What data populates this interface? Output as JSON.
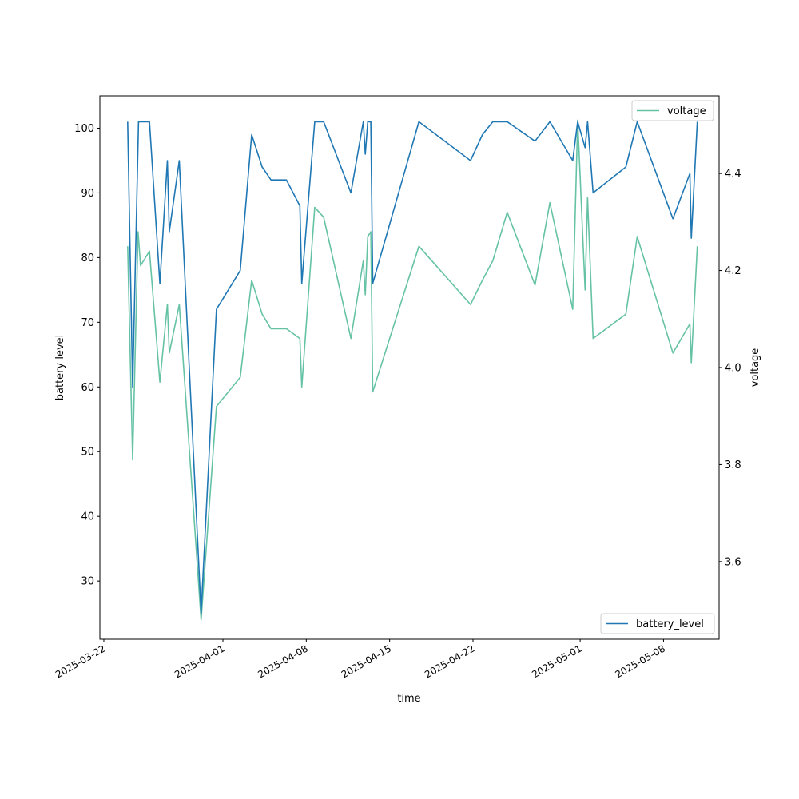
{
  "chart_data": {
    "type": "line",
    "xlabel": "time",
    "ylabel_left": "battery level",
    "ylabel_right": "voltage",
    "x_ticks": [
      "2025-03-22",
      "2025-04-01",
      "2025-04-08",
      "2025-04-15",
      "2025-04-22",
      "2025-05-01",
      "2025-05-08"
    ],
    "y_left_ticks": [
      30,
      40,
      50,
      60,
      70,
      80,
      90,
      100
    ],
    "y_right_ticks": [
      "3.6",
      "3.8",
      "4.0",
      "4.2",
      "4.4"
    ],
    "xlim": [
      "2025-03-21T16:00",
      "2025-05-12T16:00"
    ],
    "ylim_left": [
      21,
      105
    ],
    "ylim_right": [
      3.44,
      4.56
    ],
    "grid": false,
    "series": [
      {
        "name": "battery_level",
        "axis": "left",
        "color": "#1f77b4",
        "legend_position": "lower-right",
        "points": [
          [
            "2025-03-24T00:00",
            101
          ],
          [
            "2025-03-24T10:00",
            60
          ],
          [
            "2025-03-24T22:00",
            101
          ],
          [
            "2025-03-25T20:00",
            101
          ],
          [
            "2025-03-26T17:00",
            76
          ],
          [
            "2025-03-27T08:00",
            95
          ],
          [
            "2025-03-27T12:00",
            84
          ],
          [
            "2025-03-28T08:00",
            95
          ],
          [
            "2025-03-30T04:00",
            25
          ],
          [
            "2025-03-31T11:00",
            72
          ],
          [
            "2025-04-02T11:00",
            78
          ],
          [
            "2025-04-03T10:00",
            99
          ],
          [
            "2025-04-04T07:00",
            94
          ],
          [
            "2025-04-05T01:00",
            92
          ],
          [
            "2025-04-06T08:00",
            92
          ],
          [
            "2025-04-07T11:00",
            88
          ],
          [
            "2025-04-07T15:00",
            76
          ],
          [
            "2025-04-08T17:00",
            101
          ],
          [
            "2025-04-09T11:00",
            101
          ],
          [
            "2025-04-11T18:00",
            90
          ],
          [
            "2025-04-12T19:00",
            101
          ],
          [
            "2025-04-12T23:00",
            96
          ],
          [
            "2025-04-13T04:00",
            101
          ],
          [
            "2025-04-13T10:00",
            101
          ],
          [
            "2025-04-13T14:00",
            76
          ],
          [
            "2025-04-17T11:00",
            101
          ],
          [
            "2025-04-21T19:00",
            95
          ],
          [
            "2025-04-22T19:00",
            99
          ],
          [
            "2025-04-23T16:00",
            101
          ],
          [
            "2025-04-24T21:00",
            101
          ],
          [
            "2025-04-27T05:00",
            98
          ],
          [
            "2025-04-28T11:00",
            101
          ],
          [
            "2025-04-30T09:00",
            95
          ],
          [
            "2025-04-30T19:00",
            101
          ],
          [
            "2025-05-01T10:00",
            97
          ],
          [
            "2025-05-01T15:00",
            101
          ],
          [
            "2025-05-02T02:00",
            90
          ],
          [
            "2025-05-04T20:00",
            94
          ],
          [
            "2025-05-05T19:00",
            101
          ],
          [
            "2025-05-08T19:00",
            86
          ],
          [
            "2025-05-10T05:00",
            93
          ],
          [
            "2025-05-10T08:00",
            83
          ],
          [
            "2025-05-10T20:00",
            101
          ]
        ]
      },
      {
        "name": "voltage",
        "axis": "right",
        "color": "#66c2a5",
        "legend_position": "upper-right",
        "points": [
          [
            "2025-03-24T00:00",
            4.25
          ],
          [
            "2025-03-24T10:00",
            3.81
          ],
          [
            "2025-03-24T21:00",
            4.28
          ],
          [
            "2025-03-25T02:00",
            4.21
          ],
          [
            "2025-03-25T20:00",
            4.24
          ],
          [
            "2025-03-26T17:00",
            3.97
          ],
          [
            "2025-03-27T08:00",
            4.13
          ],
          [
            "2025-03-27T12:00",
            4.03
          ],
          [
            "2025-03-28T08:00",
            4.13
          ],
          [
            "2025-03-30T04:00",
            3.48
          ],
          [
            "2025-03-31T11:00",
            3.92
          ],
          [
            "2025-04-02T11:00",
            3.98
          ],
          [
            "2025-04-03T10:00",
            4.18
          ],
          [
            "2025-04-04T07:00",
            4.11
          ],
          [
            "2025-04-05T01:00",
            4.08
          ],
          [
            "2025-04-06T08:00",
            4.08
          ],
          [
            "2025-04-07T11:00",
            4.06
          ],
          [
            "2025-04-07T15:00",
            3.96
          ],
          [
            "2025-04-08T17:00",
            4.33
          ],
          [
            "2025-04-09T11:00",
            4.31
          ],
          [
            "2025-04-11T18:00",
            4.06
          ],
          [
            "2025-04-12T19:00",
            4.22
          ],
          [
            "2025-04-12T23:00",
            4.15
          ],
          [
            "2025-04-13T04:00",
            4.27
          ],
          [
            "2025-04-13T10:00",
            4.28
          ],
          [
            "2025-04-13T14:00",
            3.95
          ],
          [
            "2025-04-17T11:00",
            4.25
          ],
          [
            "2025-04-21T19:00",
            4.13
          ],
          [
            "2025-04-22T19:00",
            4.18
          ],
          [
            "2025-04-23T16:00",
            4.22
          ],
          [
            "2025-04-24T21:00",
            4.32
          ],
          [
            "2025-04-27T05:00",
            4.17
          ],
          [
            "2025-04-28T11:00",
            4.34
          ],
          [
            "2025-04-30T09:00",
            4.12
          ],
          [
            "2025-04-30T19:00",
            4.51
          ],
          [
            "2025-05-01T10:00",
            4.16
          ],
          [
            "2025-05-01T15:00",
            4.35
          ],
          [
            "2025-05-02T02:00",
            4.06
          ],
          [
            "2025-05-04T20:00",
            4.11
          ],
          [
            "2025-05-05T19:00",
            4.27
          ],
          [
            "2025-05-08T19:00",
            4.03
          ],
          [
            "2025-05-10T05:00",
            4.09
          ],
          [
            "2025-05-10T08:00",
            4.01
          ],
          [
            "2025-05-10T20:00",
            4.25
          ]
        ]
      }
    ]
  }
}
